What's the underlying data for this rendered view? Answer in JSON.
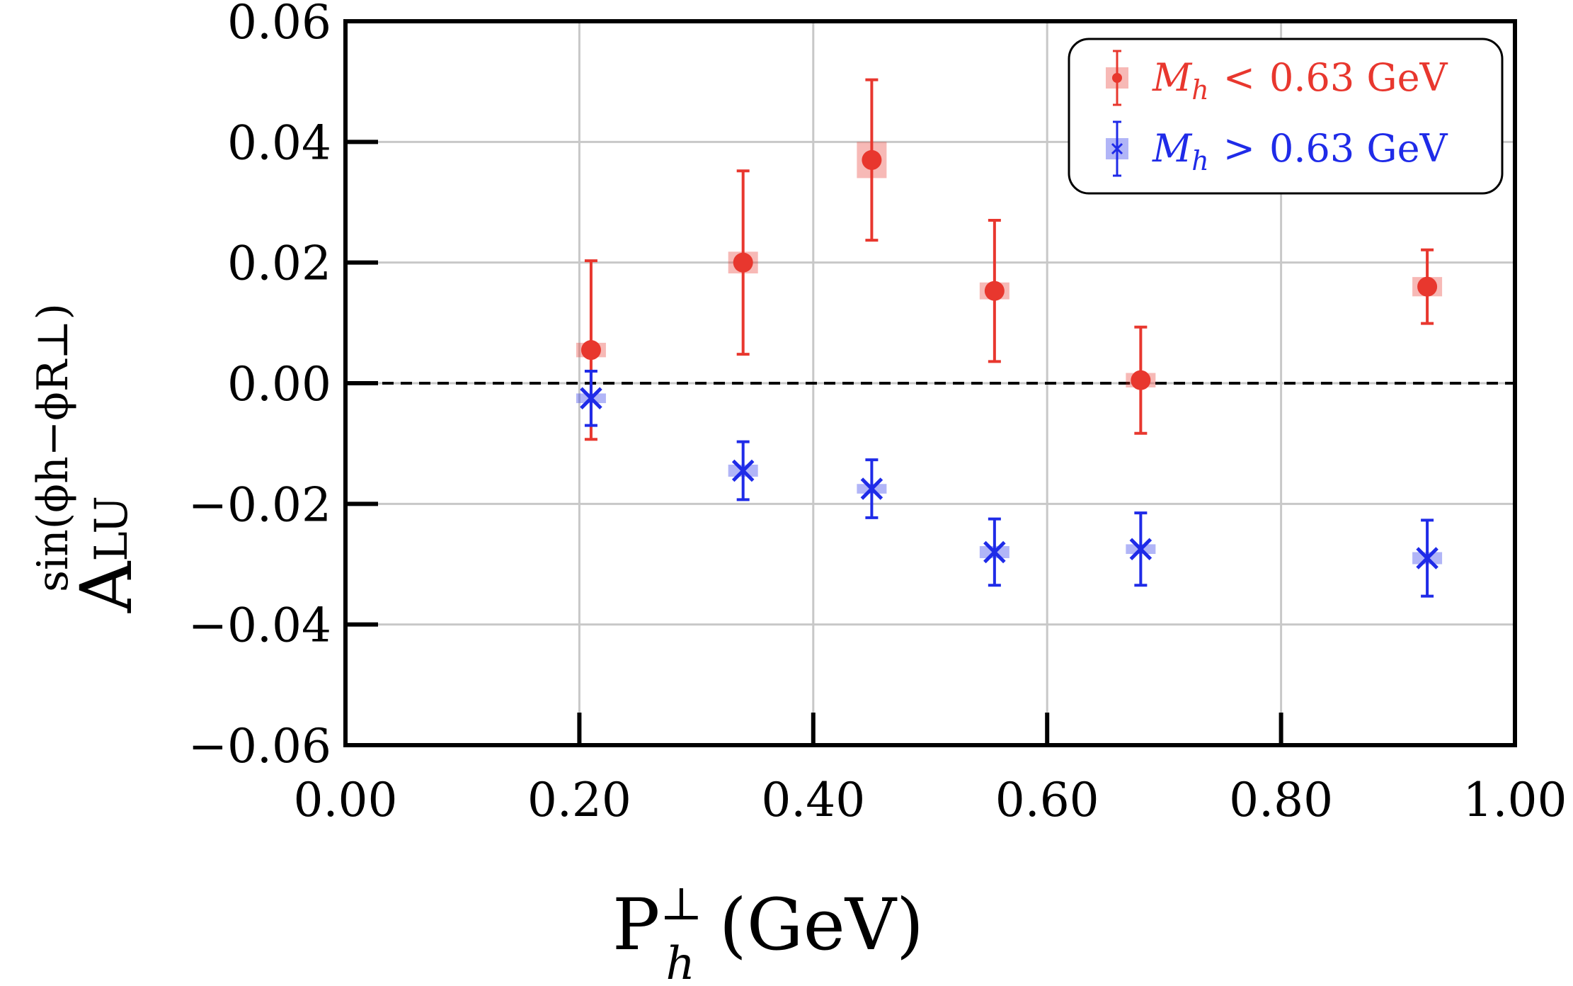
{
  "chart_data": {
    "type": "scatter",
    "title": "",
    "xlabel": {
      "base": "P",
      "sup": "⊥",
      "sub": "h",
      "unit": "(GeV)"
    },
    "ylabel": {
      "base": "A",
      "sub": "LU",
      "sup": "sin(ϕh−ϕR⊥)"
    },
    "xlim": [
      0.0,
      1.0
    ],
    "ylim": [
      -0.06,
      0.06
    ],
    "x_ticks": [
      "0.00",
      "0.20",
      "0.40",
      "0.60",
      "0.80",
      "1.00"
    ],
    "y_ticks": [
      "−0.06",
      "−0.04",
      "−0.02",
      "0.00",
      "0.02",
      "0.04",
      "0.06"
    ],
    "grid": true,
    "reference_line": {
      "y": 0.0,
      "style": "dashed"
    },
    "legend_position": "top-right",
    "series": [
      {
        "name": "M_h < 0.63 GeV",
        "label_var": "M",
        "label_sub": "h",
        "label_op": "<",
        "label_rest": "0.63 GeV",
        "color": "#e8372e",
        "marker": "circle",
        "x": [
          0.21,
          0.34,
          0.45,
          0.555,
          0.68,
          0.925
        ],
        "y": [
          0.0055,
          0.02,
          0.037,
          0.0153,
          0.0005,
          0.016
        ],
        "yerr": [
          0.0148,
          0.0152,
          0.0133,
          0.0117,
          0.0088,
          0.0061
        ],
        "syst": [
          0.0012,
          0.0018,
          0.003,
          0.0014,
          0.0012,
          0.0016
        ]
      },
      {
        "name": "M_h > 0.63 GeV",
        "label_var": "M",
        "label_sub": "h",
        "label_op": ">",
        "label_rest": "0.63 GeV",
        "color": "#1f2be8",
        "marker": "x",
        "x": [
          0.21,
          0.34,
          0.45,
          0.555,
          0.68,
          0.925
        ],
        "y": [
          -0.0025,
          -0.0145,
          -0.0175,
          -0.028,
          -0.0275,
          -0.029
        ],
        "yerr": [
          0.0045,
          0.0048,
          0.0048,
          0.0055,
          0.006,
          0.0063
        ],
        "syst": [
          0.0008,
          0.001,
          0.0008,
          0.001,
          0.0008,
          0.001
        ]
      }
    ]
  },
  "colors": {
    "axis": "#000000",
    "grid": "#c8c8c8"
  }
}
